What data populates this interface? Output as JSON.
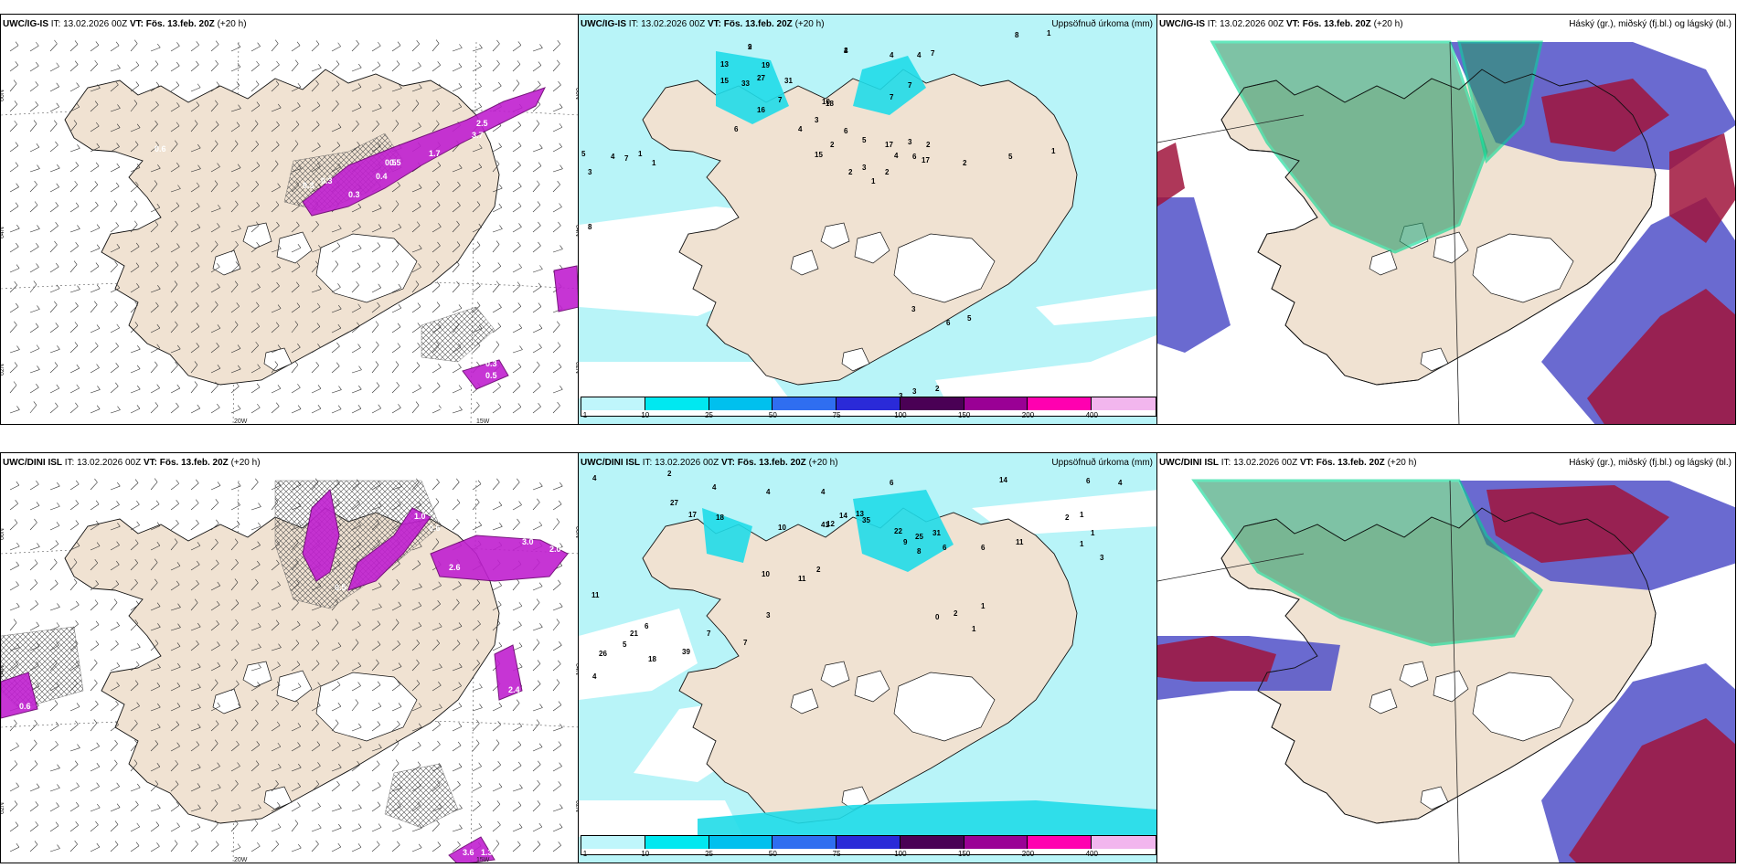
{
  "panels": [
    {
      "id": "ig-wind",
      "model": "UWC/IG-IS",
      "it_label": "IT:",
      "it_value": "13.02.2026 00Z",
      "vt_label": "VT:",
      "vt_value": "Fös. 13.feb. 20Z",
      "lead": "(+20 h)",
      "right_label": "",
      "lat_labels": [
        "66N",
        "64N",
        "62N"
      ],
      "lon_labels": [
        "20W",
        "15W"
      ],
      "values": [
        "0.6",
        "0.5",
        "0.3",
        "0.3",
        "0.3",
        "0.4",
        "0.5",
        "1.7",
        "3.7",
        "2.5",
        "4.4",
        "0.3",
        "0.5",
        "0.7",
        "2.4"
      ]
    },
    {
      "id": "ig-precip",
      "model": "UWC/IG-IS",
      "it_label": "IT:",
      "it_value": "13.02.2026 00Z",
      "vt_label": "VT:",
      "vt_value": "Fös. 13.feb. 20Z",
      "lead": "(+20 h)",
      "right_label": "Uppsöfnuð úrkoma (mm)",
      "values": [
        "9",
        "4",
        "4",
        "4",
        "7",
        "8",
        "1",
        "13",
        "15",
        "33",
        "19",
        "27",
        "31",
        "16",
        "18",
        "7",
        "10",
        "6",
        "3",
        "7",
        "7",
        "4",
        "6",
        "2",
        "5",
        "15",
        "17",
        "3",
        "2",
        "4",
        "6",
        "17",
        "5",
        "1",
        "2",
        "2",
        "3",
        "2",
        "1",
        "5",
        "4",
        "7",
        "1",
        "3",
        "1",
        "8",
        "3",
        "5",
        "6",
        "3",
        "3",
        "2",
        "2",
        "2"
      ]
    },
    {
      "id": "ig-cloud",
      "model": "UWC/IG-IS",
      "it_label": "IT:",
      "it_value": "13.02.2026 00Z",
      "vt_label": "VT:",
      "vt_value": "Fös. 13.feb. 20Z",
      "lead": "(+20 h)",
      "right_label": "Háský (gr.), miðský (fj.bl.) og lágský (bl.)"
    },
    {
      "id": "dini-wind",
      "model": "UWC/DINI ISL",
      "it_label": "IT:",
      "it_value": "13.02.2026 00Z",
      "vt_label": "VT:",
      "vt_value": "Fös. 13.feb. 20Z",
      "lead": "(+20 h)",
      "right_label": "",
      "lat_labels": [
        "66N",
        "64N",
        "62N"
      ],
      "lon_labels": [
        "20W",
        "15W"
      ],
      "values": [
        "1.0",
        "0.6",
        "2.6",
        "0.5",
        "3.0",
        "2.0",
        "0.6",
        "0.7",
        "2.4",
        "3.6",
        "1.3"
      ]
    },
    {
      "id": "dini-precip",
      "model": "UWC/DINI ISL",
      "it_label": "IT:",
      "it_value": "13.02.2026 00Z",
      "vt_label": "VT:",
      "vt_value": "Fös. 13.feb. 20Z",
      "lead": "(+20 h)",
      "right_label": "Uppsöfnuð úrkoma (mm)",
      "values": [
        "4",
        "2",
        "4",
        "4",
        "4",
        "6",
        "14",
        "6",
        "4",
        "27",
        "17",
        "18",
        "10",
        "12",
        "14",
        "13",
        "35",
        "41",
        "22",
        "31",
        "25",
        "9",
        "8",
        "6",
        "6",
        "11",
        "2",
        "1",
        "1",
        "1",
        "3",
        "0",
        "1",
        "1",
        "2",
        "2",
        "11",
        "10",
        "3",
        "7",
        "7",
        "6",
        "5",
        "39",
        "21",
        "18",
        "26",
        "11",
        "4"
      ]
    },
    {
      "id": "dini-cloud",
      "model": "UWC/DINI ISL",
      "it_label": "IT:",
      "it_value": "13.02.2026 00Z",
      "vt_label": "VT:",
      "vt_value": "Fös. 13.feb. 20Z",
      "lead": "(+20 h)",
      "right_label": "Háský (gr.), miðský (fj.bl.) og lágský (bl.)"
    }
  ],
  "precip_legend": {
    "ticks": [
      "1",
      "10",
      "25",
      "50",
      "75",
      "100",
      "150",
      "200",
      "400"
    ],
    "colors": [
      "#bff6fb",
      "#00e8f0",
      "#00c0ee",
      "#2f6ef0",
      "#2a2ad8",
      "#4a0055",
      "#9a0095",
      "#ff00b0",
      "#f2b6ee"
    ]
  },
  "colors": {
    "land": "#f0e2d2",
    "sea": "#ffffff",
    "precip_light": "#b8f4f8",
    "precip_mid": "#20dce8",
    "wind_magenta": "#c020d0",
    "cloud_high": "#2a9a6a",
    "cloud_mid": "#5050c8",
    "cloud_low": "#a0143c"
  }
}
